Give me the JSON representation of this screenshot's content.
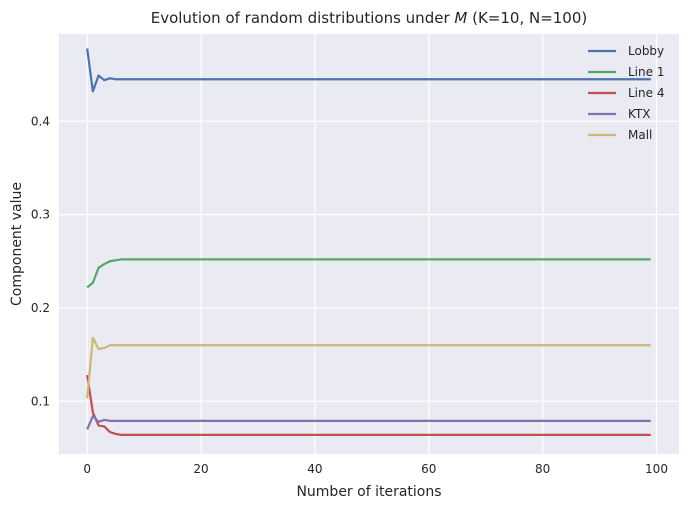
{
  "chart_data": {
    "type": "line",
    "title": "Evolution of random distributions under M (K=10, N=100)",
    "title_parts": {
      "before": "Evolution of random distributions under ",
      "math": "M",
      "after": " (K=10, N=100)"
    },
    "xlabel": "Number of iterations",
    "ylabel": "Component value",
    "xlim": [
      -4.95,
      103.95
    ],
    "ylim": [
      0.0435,
      0.4935
    ],
    "xticks": [
      0,
      20,
      40,
      60,
      80,
      100
    ],
    "yticks": [
      0.1,
      0.2,
      0.3,
      0.4
    ],
    "xtick_labels": [
      "0",
      "20",
      "40",
      "60",
      "80",
      "100"
    ],
    "ytick_labels": [
      "0.1",
      "0.2",
      "0.3",
      "0.4"
    ],
    "grid": true,
    "legend_position": "top-right",
    "x_start": 0,
    "x_end": 99,
    "series": [
      {
        "name": "Lobby",
        "color": "#4c72b0",
        "head": [
          0.478,
          0.432,
          0.449,
          0.444,
          0.446,
          0.445
        ],
        "final": 0.445
      },
      {
        "name": "Line 1",
        "color": "#55a868",
        "head": [
          0.222,
          0.227,
          0.243,
          0.247,
          0.25,
          0.251,
          0.252
        ],
        "final": 0.252
      },
      {
        "name": "Line 4",
        "color": "#c44e52",
        "head": [
          0.128,
          0.088,
          0.074,
          0.073,
          0.067,
          0.065,
          0.064
        ],
        "final": 0.064
      },
      {
        "name": "KTX",
        "color": "#8172b2",
        "head": [
          0.07,
          0.084,
          0.078,
          0.08,
          0.079,
          0.079
        ],
        "final": 0.079
      },
      {
        "name": "Mall",
        "color": "#ccb974",
        "head": [
          0.103,
          0.168,
          0.156,
          0.157,
          0.16,
          0.16
        ],
        "final": 0.16
      }
    ]
  }
}
